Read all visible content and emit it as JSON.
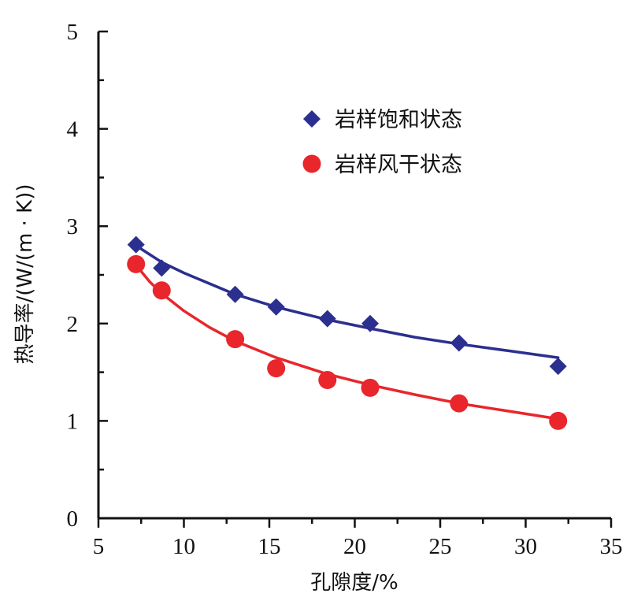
{
  "chart_data": {
    "type": "scatter",
    "xlabel": "孔隙度/%",
    "ylabel": "热导率/(W/(m · K))",
    "xlim": [
      5,
      35
    ],
    "ylim": [
      0,
      5
    ],
    "x_ticks": [
      "5",
      "10",
      "15",
      "20",
      "25",
      "30",
      "35"
    ],
    "y_ticks": [
      "0",
      "1",
      "2",
      "3",
      "4",
      "5"
    ],
    "grid": false,
    "legend_position": "top-right",
    "series": [
      {
        "name": "岩样饱和状态",
        "marker": "diamond",
        "color": "#2b2f8f",
        "points": [
          {
            "x": 7.2,
            "y": 2.81
          },
          {
            "x": 8.7,
            "y": 2.57
          },
          {
            "x": 13.0,
            "y": 2.3
          },
          {
            "x": 15.4,
            "y": 2.17
          },
          {
            "x": 18.4,
            "y": 2.05
          },
          {
            "x": 20.9,
            "y": 2.0
          },
          {
            "x": 26.1,
            "y": 1.8
          },
          {
            "x": 31.9,
            "y": 1.56
          }
        ],
        "fit": [
          {
            "x": 7.2,
            "y": 2.8
          },
          {
            "x": 8.7,
            "y": 2.63
          },
          {
            "x": 10.0,
            "y": 2.52
          },
          {
            "x": 13.0,
            "y": 2.3
          },
          {
            "x": 15.4,
            "y": 2.17
          },
          {
            "x": 18.4,
            "y": 2.04
          },
          {
            "x": 20.9,
            "y": 1.95
          },
          {
            "x": 23.5,
            "y": 1.86
          },
          {
            "x": 26.1,
            "y": 1.79
          },
          {
            "x": 29.0,
            "y": 1.72
          },
          {
            "x": 31.9,
            "y": 1.65
          }
        ]
      },
      {
        "name": "岩样风干状态",
        "marker": "circle",
        "color": "#e8262b",
        "points": [
          {
            "x": 7.2,
            "y": 2.61
          },
          {
            "x": 8.7,
            "y": 2.34
          },
          {
            "x": 13.0,
            "y": 1.84
          },
          {
            "x": 15.4,
            "y": 1.54
          },
          {
            "x": 18.4,
            "y": 1.42
          },
          {
            "x": 20.9,
            "y": 1.34
          },
          {
            "x": 26.1,
            "y": 1.18
          },
          {
            "x": 31.9,
            "y": 1.0
          }
        ],
        "fit": [
          {
            "x": 7.2,
            "y": 2.6
          },
          {
            "x": 8.0,
            "y": 2.43
          },
          {
            "x": 8.7,
            "y": 2.31
          },
          {
            "x": 10.0,
            "y": 2.13
          },
          {
            "x": 11.5,
            "y": 1.96
          },
          {
            "x": 13.0,
            "y": 1.82
          },
          {
            "x": 15.4,
            "y": 1.65
          },
          {
            "x": 18.4,
            "y": 1.48
          },
          {
            "x": 20.9,
            "y": 1.37
          },
          {
            "x": 23.5,
            "y": 1.27
          },
          {
            "x": 26.1,
            "y": 1.18
          },
          {
            "x": 29.0,
            "y": 1.1
          },
          {
            "x": 31.9,
            "y": 1.02
          }
        ]
      }
    ]
  }
}
